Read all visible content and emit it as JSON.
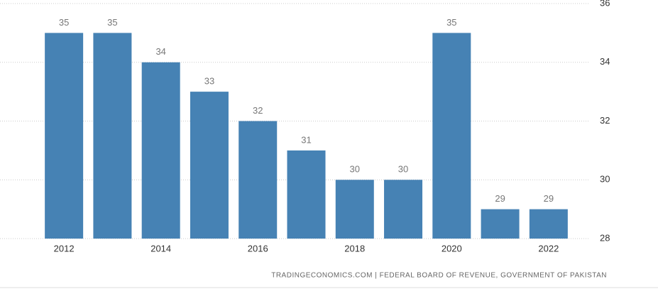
{
  "chart_data": {
    "type": "bar",
    "categories": [
      "2012",
      null,
      "2014",
      null,
      "2016",
      null,
      "2018",
      null,
      "2020",
      null,
      "2022"
    ],
    "values": [
      35,
      35,
      34,
      33,
      32,
      31,
      30,
      30,
      35,
      29,
      29
    ],
    "color": "#4682b4",
    "ylim": [
      28,
      36
    ],
    "yticks": [
      28,
      30,
      32,
      34,
      36
    ],
    "grid": true,
    "source": "TRADINGECONOMICS.COM | FEDERAL BOARD OF REVENUE, GOVERNMENT OF PAKISTAN"
  }
}
